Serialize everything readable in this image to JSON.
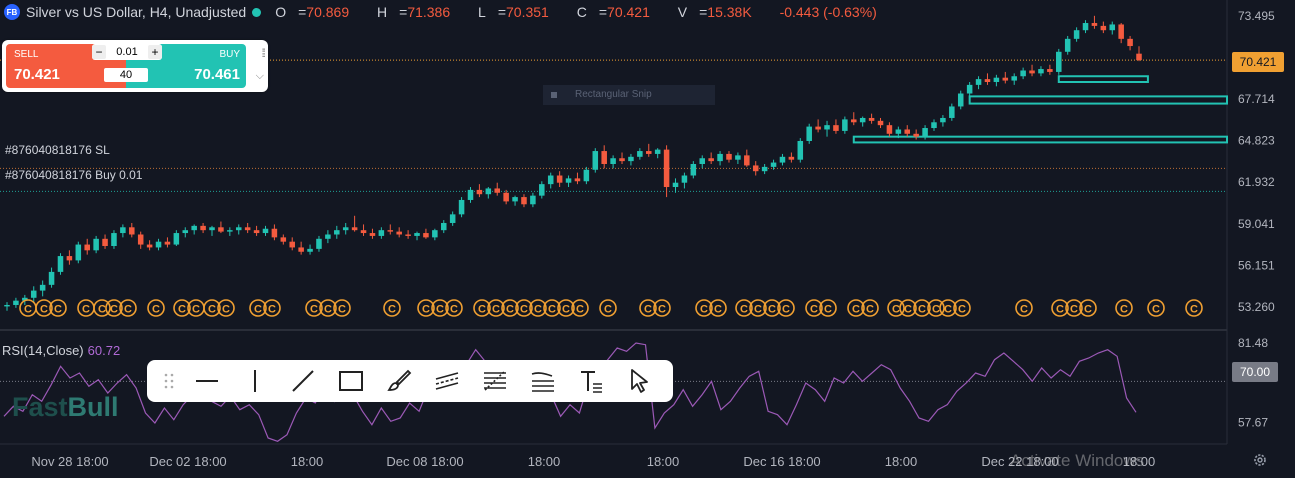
{
  "header": {
    "logo": "FB",
    "title": "Silver vs US Dollar, H4, Unadjusted",
    "status_dot_color": "#22c3b3",
    "ohlc": [
      {
        "key": "O",
        "value": "70.869"
      },
      {
        "key": "H",
        "value": "71.386"
      },
      {
        "key": "L",
        "value": "70.351"
      },
      {
        "key": "C",
        "value": "70.421"
      }
    ],
    "volume": "15.38K",
    "change": "-0.443 (-0.63%)"
  },
  "trade_panel": {
    "sell_label": "SELL",
    "sell_price": "70.421",
    "buy_label": "BUY",
    "buy_price": "70.461",
    "quantity": "0.01",
    "minus": "−",
    "plus": "+",
    "lots": "40",
    "grip_icon": "drag-grip-icon",
    "chevron_icon": "chevron-down-icon"
  },
  "snip_overlay": "Rectangular Snip",
  "orders": [
    {
      "label": "#876040818176 SL",
      "price": 62.9,
      "color": "#e8833a"
    },
    {
      "label": "#876040818176 Buy 0.01",
      "price": 61.3,
      "color": "#22c3b3"
    }
  ],
  "toolbar": {
    "tools": [
      "drag-handle-icon",
      "horizontal-line-icon",
      "vertical-line-icon",
      "trend-line-icon",
      "rectangle-icon",
      "brush-icon",
      "parallel-channel-icon",
      "fib-retracement-icon",
      "fib-extension-icon",
      "text-icon",
      "cursor-icon"
    ]
  },
  "rsi": {
    "label": "RSI(14,Close)",
    "value": "60.72",
    "tag": "70.00"
  },
  "brand": {
    "part1": "Fast",
    "part2": "Bull"
  },
  "watermark": "Activate Windows",
  "colors": {
    "background": "#131722",
    "up": "#22c3b3",
    "down": "#f45b3f",
    "price_tag": "#f0a032",
    "rsi_line": "#9b59b6",
    "zone": "#22c3b3",
    "event_icon": "#f0a032"
  },
  "chart_data": {
    "type": "candlestick",
    "title": "Silver vs US Dollar, H4, Unadjusted",
    "last_price": "70.421",
    "price_axis_ticks": [
      "73.495",
      "70.421",
      "67.714",
      "64.823",
      "61.932",
      "59.041",
      "56.151",
      "53.260"
    ],
    "price_range": [
      51.8,
      74.6
    ],
    "time_axis_ticks": [
      "Nov 28 18:00",
      "Dec 02 18:00",
      "18:00",
      "Dec 08 18:00",
      "18:00",
      "18:00",
      "Dec 16 18:00",
      "18:00",
      "Dec 22 18:00",
      "18:00"
    ],
    "candles": [
      [
        53.3,
        53.6,
        53.0,
        53.4
      ],
      [
        53.4,
        53.9,
        53.2,
        53.7
      ],
      [
        53.7,
        54.1,
        53.4,
        53.9
      ],
      [
        53.9,
        54.7,
        53.6,
        54.4
      ],
      [
        54.4,
        55.1,
        54.0,
        54.8
      ],
      [
        54.8,
        56.0,
        54.6,
        55.7
      ],
      [
        55.7,
        57.0,
        55.5,
        56.8
      ],
      [
        56.8,
        57.2,
        56.2,
        56.5
      ],
      [
        56.5,
        57.8,
        56.3,
        57.6
      ],
      [
        57.6,
        58.0,
        56.9,
        57.2
      ],
      [
        57.2,
        58.2,
        57.0,
        58.0
      ],
      [
        58.0,
        58.3,
        57.3,
        57.5
      ],
      [
        57.5,
        58.6,
        57.3,
        58.4
      ],
      [
        58.4,
        59.0,
        58.1,
        58.8
      ],
      [
        58.8,
        59.1,
        58.1,
        58.3
      ],
      [
        58.3,
        58.5,
        57.3,
        57.6
      ],
      [
        57.6,
        57.9,
        57.2,
        57.4
      ],
      [
        57.4,
        58.0,
        57.2,
        57.8
      ],
      [
        57.8,
        58.1,
        57.4,
        57.6
      ],
      [
        57.6,
        58.6,
        57.5,
        58.4
      ],
      [
        58.4,
        58.8,
        58.1,
        58.6
      ],
      [
        58.6,
        59.0,
        58.3,
        58.9
      ],
      [
        58.9,
        59.1,
        58.4,
        58.6
      ],
      [
        58.6,
        58.9,
        58.2,
        58.8
      ],
      [
        58.8,
        59.2,
        58.4,
        58.5
      ],
      [
        58.5,
        58.8,
        58.2,
        58.6
      ],
      [
        58.6,
        59.0,
        58.3,
        58.8
      ],
      [
        58.8,
        59.1,
        58.4,
        58.6
      ],
      [
        58.6,
        58.9,
        58.2,
        58.4
      ],
      [
        58.4,
        58.9,
        58.2,
        58.7
      ],
      [
        58.7,
        59.0,
        57.9,
        58.1
      ],
      [
        58.1,
        58.3,
        57.6,
        57.8
      ],
      [
        57.8,
        58.1,
        57.2,
        57.4
      ],
      [
        57.4,
        57.8,
        56.9,
        57.1
      ],
      [
        57.1,
        57.6,
        56.9,
        57.3
      ],
      [
        57.3,
        58.2,
        57.1,
        58.0
      ],
      [
        58.0,
        58.6,
        57.7,
        58.3
      ],
      [
        58.3,
        58.9,
        58.0,
        58.6
      ],
      [
        58.6,
        59.1,
        58.3,
        58.8
      ],
      [
        58.8,
        59.6,
        58.5,
        58.6
      ],
      [
        58.6,
        59.0,
        58.2,
        58.4
      ],
      [
        58.4,
        58.7,
        58.0,
        58.2
      ],
      [
        58.2,
        58.8,
        58.0,
        58.6
      ],
      [
        58.6,
        59.0,
        58.3,
        58.5
      ],
      [
        58.5,
        58.8,
        58.1,
        58.3
      ],
      [
        58.3,
        58.6,
        58.0,
        58.2
      ],
      [
        58.2,
        58.5,
        57.9,
        58.4
      ],
      [
        58.4,
        58.7,
        58.0,
        58.1
      ],
      [
        58.1,
        58.7,
        57.9,
        58.6
      ],
      [
        58.6,
        59.3,
        58.4,
        59.1
      ],
      [
        59.1,
        59.9,
        58.9,
        59.7
      ],
      [
        59.7,
        60.9,
        59.5,
        60.7
      ],
      [
        60.7,
        61.6,
        60.5,
        61.4
      ],
      [
        61.4,
        61.8,
        60.9,
        61.1
      ],
      [
        61.1,
        61.6,
        60.8,
        61.5
      ],
      [
        61.5,
        61.9,
        61.0,
        61.2
      ],
      [
        61.2,
        61.4,
        60.4,
        60.6
      ],
      [
        60.6,
        61.0,
        60.3,
        60.9
      ],
      [
        60.9,
        61.1,
        60.2,
        60.4
      ],
      [
        60.4,
        61.2,
        60.2,
        61.0
      ],
      [
        61.0,
        62.0,
        60.8,
        61.8
      ],
      [
        61.8,
        62.6,
        61.5,
        62.4
      ],
      [
        62.4,
        62.7,
        61.6,
        61.9
      ],
      [
        61.9,
        62.4,
        61.6,
        62.2
      ],
      [
        62.2,
        62.6,
        61.8,
        62.0
      ],
      [
        62.0,
        63.0,
        61.8,
        62.8
      ],
      [
        62.8,
        64.3,
        62.6,
        64.1
      ],
      [
        64.1,
        64.5,
        62.9,
        63.2
      ],
      [
        63.2,
        63.8,
        62.9,
        63.6
      ],
      [
        63.6,
        64.0,
        63.2,
        63.4
      ],
      [
        63.4,
        63.9,
        63.1,
        63.7
      ],
      [
        63.7,
        64.3,
        63.5,
        64.1
      ],
      [
        64.1,
        64.6,
        63.7,
        63.9
      ],
      [
        63.9,
        64.3,
        63.6,
        64.2
      ],
      [
        64.2,
        64.5,
        60.9,
        61.6
      ],
      [
        61.6,
        62.2,
        61.2,
        61.9
      ],
      [
        61.9,
        62.6,
        61.5,
        62.4
      ],
      [
        62.4,
        63.4,
        62.2,
        63.2
      ],
      [
        63.2,
        63.8,
        62.9,
        63.6
      ],
      [
        63.6,
        64.0,
        63.2,
        63.4
      ],
      [
        63.4,
        64.1,
        63.1,
        63.9
      ],
      [
        63.9,
        64.1,
        63.3,
        63.5
      ],
      [
        63.5,
        64.0,
        63.2,
        63.8
      ],
      [
        63.8,
        64.2,
        63.0,
        63.1
      ],
      [
        63.1,
        63.4,
        62.4,
        62.7
      ],
      [
        62.7,
        63.2,
        62.5,
        63.0
      ],
      [
        63.0,
        63.5,
        62.8,
        63.3
      ],
      [
        63.3,
        63.9,
        63.1,
        63.7
      ],
      [
        63.7,
        64.0,
        63.3,
        63.5
      ],
      [
        63.5,
        65.0,
        63.3,
        64.8
      ],
      [
        64.8,
        66.0,
        64.6,
        65.8
      ],
      [
        65.8,
        66.3,
        65.4,
        65.6
      ],
      [
        65.6,
        66.2,
        65.1,
        65.9
      ],
      [
        65.9,
        66.3,
        65.3,
        65.5
      ],
      [
        65.5,
        66.5,
        65.3,
        66.3
      ],
      [
        66.3,
        66.8,
        65.9,
        66.1
      ],
      [
        66.1,
        66.5,
        65.8,
        66.4
      ],
      [
        66.4,
        66.7,
        66.0,
        66.2
      ],
      [
        66.2,
        66.4,
        65.7,
        65.9
      ],
      [
        65.9,
        66.1,
        65.1,
        65.3
      ],
      [
        65.3,
        65.8,
        65.0,
        65.6
      ],
      [
        65.6,
        65.9,
        65.1,
        65.3
      ],
      [
        65.3,
        65.6,
        64.9,
        65.1
      ],
      [
        65.1,
        65.9,
        64.9,
        65.7
      ],
      [
        65.7,
        66.3,
        65.5,
        66.1
      ],
      [
        66.1,
        66.6,
        65.8,
        66.4
      ],
      [
        66.4,
        67.4,
        66.2,
        67.2
      ],
      [
        67.2,
        68.3,
        67.0,
        68.1
      ],
      [
        68.1,
        68.9,
        67.9,
        68.7
      ],
      [
        68.7,
        69.3,
        68.4,
        69.1
      ],
      [
        69.1,
        69.5,
        68.7,
        68.9
      ],
      [
        68.9,
        69.4,
        68.6,
        69.2
      ],
      [
        69.2,
        69.6,
        68.8,
        69.0
      ],
      [
        69.0,
        69.5,
        68.7,
        69.3
      ],
      [
        69.3,
        69.9,
        69.1,
        69.7
      ],
      [
        69.7,
        70.1,
        69.3,
        69.5
      ],
      [
        69.5,
        70.0,
        69.3,
        69.8
      ],
      [
        69.8,
        70.1,
        69.4,
        69.6
      ],
      [
        69.6,
        71.2,
        69.4,
        71.0
      ],
      [
        71.0,
        72.1,
        70.8,
        71.9
      ],
      [
        71.9,
        72.7,
        71.7,
        72.5
      ],
      [
        72.5,
        73.2,
        72.3,
        73.0
      ],
      [
        73.0,
        73.5,
        72.6,
        72.8
      ],
      [
        72.8,
        73.1,
        72.3,
        72.5
      ],
      [
        72.5,
        73.1,
        72.2,
        72.9
      ],
      [
        72.9,
        73.0,
        71.6,
        71.9
      ],
      [
        71.9,
        72.1,
        71.1,
        71.4
      ],
      [
        70.869,
        71.386,
        70.351,
        70.421
      ]
    ],
    "zones": [
      {
        "start_index": 118,
        "end_index": 128,
        "top": 69.3,
        "bottom": 68.9
      },
      {
        "start_index": 108,
        "end_index": 148,
        "top": 67.9,
        "bottom": 67.4
      },
      {
        "start_index": 95,
        "end_index": 140,
        "top": 65.1,
        "bottom": 64.7
      }
    ],
    "event_icon_positions": [
      0.9,
      1.7,
      2.4,
      3.8,
      4.6,
      5.2,
      5.9,
      7.3,
      8.6,
      9.3,
      10.1,
      10.8,
      12.4,
      13.1,
      15.2,
      15.9,
      16.6,
      19.1,
      20.8,
      21.5,
      22.2,
      23.6,
      24.3,
      25.0,
      25.7,
      26.4,
      27.1,
      27.8,
      28.5,
      29.9,
      31.9,
      32.6,
      34.7,
      35.4,
      36.7,
      37.4,
      38.1,
      38.8,
      40.2,
      40.9,
      42.3,
      43.0,
      44.3,
      44.9,
      45.6,
      46.3,
      46.9,
      47.6,
      50.7,
      52.5,
      53.2,
      53.9,
      55.7,
      57.3,
      59.2
    ],
    "rsi_series": [
      59.5,
      62.5,
      61.0,
      66.0,
      64.0,
      69.0,
      74.5,
      71.0,
      72.5,
      68.5,
      70.5,
      66.5,
      69.5,
      72.0,
      68.0,
      60.5,
      57.5,
      62.0,
      58.5,
      63.0,
      66.0,
      70.5,
      64.0,
      62.5,
      65.5,
      61.5,
      63.0,
      60.0,
      53.0,
      52.0,
      54.0,
      60.5,
      65.0,
      63.5,
      68.5,
      64.0,
      70.0,
      66.0,
      61.0,
      57.0,
      62.0,
      58.0,
      59.0,
      63.5,
      61.0,
      68.0,
      70.5,
      73.5,
      71.0,
      75.0,
      79.5,
      76.0,
      72.0,
      69.0,
      74.0,
      71.0,
      67.5,
      64.5,
      66.0,
      59.5,
      63.0,
      60.5,
      70.0,
      73.0,
      76.5,
      80.0,
      79.0,
      81.5,
      81.0,
      56.0,
      60.5,
      63.0,
      67.5,
      62.5,
      66.0,
      70.0,
      61.5,
      64.0,
      68.0,
      71.5,
      73.0,
      61.0,
      60.0,
      57.0,
      63.0,
      69.5,
      67.5,
      64.0,
      71.0,
      69.5,
      73.0,
      70.0,
      72.5,
      75.0,
      73.5,
      68.0,
      64.0,
      59.0,
      58.0,
      61.5,
      63.0,
      67.0,
      69.5,
      72.5,
      71.5,
      76.5,
      78.5,
      76.0,
      73.5,
      70.0,
      74.0,
      71.0,
      73.5,
      71.5,
      76.0,
      77.0,
      78.5,
      79.5,
      77.5,
      65.0,
      60.72
    ],
    "rsi_axis_ticks": [
      "81.48",
      "70.00",
      "57.67"
    ],
    "rsi_range": [
      51.5,
      84.5
    ]
  }
}
